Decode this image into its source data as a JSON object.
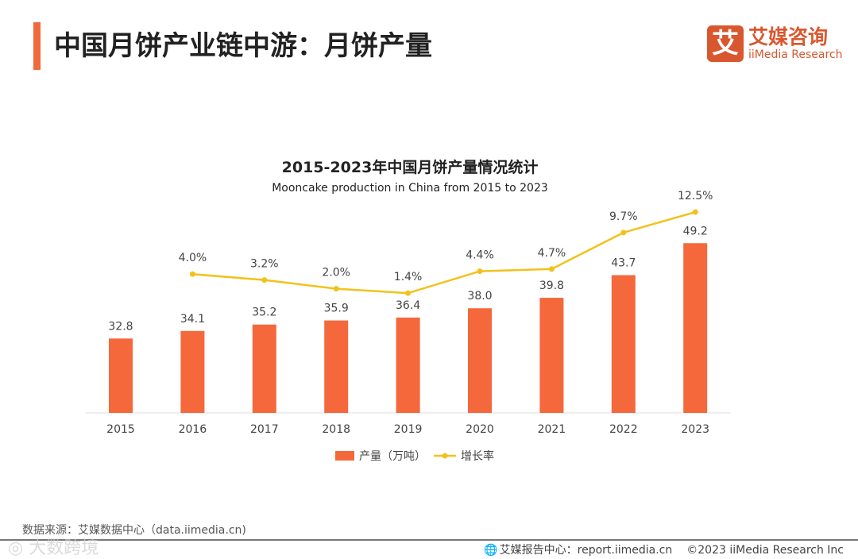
{
  "header": {
    "title": "中国月饼产业链中游：月饼产量"
  },
  "logo": {
    "mark": "艾",
    "cn": "艾媒咨询",
    "en": "iiMedia Research"
  },
  "chart_data": {
    "type": "bar+line",
    "title": "2015-2023年中国月饼产量情况统计",
    "subtitle": "Mooncake production  in China from 2015 to 2023",
    "categories": [
      "2015",
      "2016",
      "2017",
      "2018",
      "2019",
      "2020",
      "2021",
      "2022",
      "2023"
    ],
    "series": [
      {
        "name": "产量（万吨）",
        "type": "bar",
        "color": "#f4683c",
        "values": [
          32.8,
          34.1,
          35.2,
          35.9,
          36.4,
          38.0,
          39.8,
          43.7,
          49.2
        ],
        "labels": [
          "32.8",
          "34.1",
          "35.2",
          "35.9",
          "36.4",
          "38.0",
          "39.8",
          "43.7",
          "49.2"
        ]
      },
      {
        "name": "增长率",
        "type": "line",
        "color": "#f2c21b",
        "values": [
          null,
          4.0,
          3.2,
          2.0,
          1.4,
          4.4,
          4.7,
          9.7,
          12.5
        ],
        "labels": [
          "",
          "4.0%",
          "3.2%",
          "2.0%",
          "1.4%",
          "4.4%",
          "4.7%",
          "9.7%",
          "12.5%"
        ]
      }
    ],
    "legend_position": "bottom"
  },
  "footer": {
    "source": "数据来源：艾媒数据中心（data.iimedia.cn)",
    "report": "艾媒报告中心：report.iimedia.cn",
    "copyright": "©2023  iiMedia Research Inc",
    "watermark": "大数跨境"
  }
}
